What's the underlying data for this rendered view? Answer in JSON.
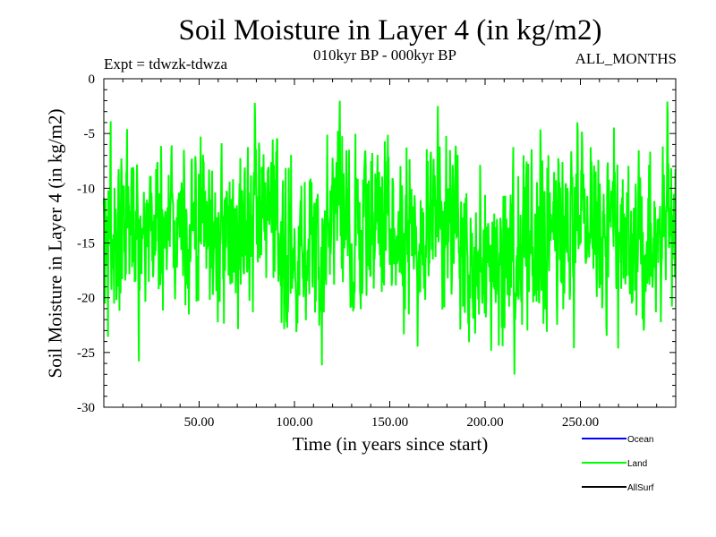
{
  "chart_data": {
    "type": "line",
    "title": "Soil Moisture in Layer 4 (in kg/m2)",
    "subtitle": "010kyr BP - 000kyr BP",
    "experiment": "Expt = tdwzk-tdwza",
    "months": "ALL_MONTHS",
    "xlabel": "Time (in years since start)",
    "ylabel": "Soil Moisture in Layer 4 (in kg/m2)",
    "xlim": [
      0,
      300
    ],
    "ylim": [
      -30,
      0
    ],
    "x_ticks": [
      50,
      100,
      150,
      200,
      250
    ],
    "x_tick_labels": [
      "50.00",
      "100.00",
      "150.00",
      "200.00",
      "250.00"
    ],
    "y_ticks": [
      0,
      -5,
      -10,
      -15,
      -20,
      -25,
      -30
    ],
    "y_tick_labels": [
      "0",
      "-5",
      "-10",
      "-15",
      "-20",
      "-25",
      "-30"
    ],
    "legend": [
      {
        "name": "Ocean",
        "color": "#0000ff"
      },
      {
        "name": "Land",
        "color": "#00ff00"
      },
      {
        "name": "AllSurf",
        "color": "#000000"
      }
    ],
    "series": [
      {
        "name": "Land",
        "color": "#00ff00",
        "x_start": 0,
        "x_step": 0.2,
        "n": 1500,
        "approx_mean": -14.5,
        "approx_min": -28.2,
        "approx_max": -0.5,
        "envelope_x": [
          0,
          10,
          20,
          27,
          30,
          40,
          50,
          60,
          66,
          75,
          80,
          90,
          100,
          105,
          110,
          114,
          118,
          123,
          125,
          130,
          140,
          150,
          160,
          170,
          180,
          190,
          200,
          202,
          210,
          220,
          230,
          240,
          250,
          260,
          270,
          280,
          290,
          300
        ],
        "envelope_mean": [
          -15,
          -14,
          -13,
          -13,
          -13,
          -13,
          -14,
          -14,
          -15,
          -13,
          -13,
          -14,
          -15,
          -15,
          -16,
          -18,
          -13,
          -10,
          -11,
          -14,
          -13,
          -13,
          -14,
          -13,
          -13,
          -14,
          -17,
          -18,
          -15,
          -14,
          -15,
          -15,
          -13,
          -13,
          -14,
          -15,
          -14,
          -14
        ]
      }
    ]
  }
}
